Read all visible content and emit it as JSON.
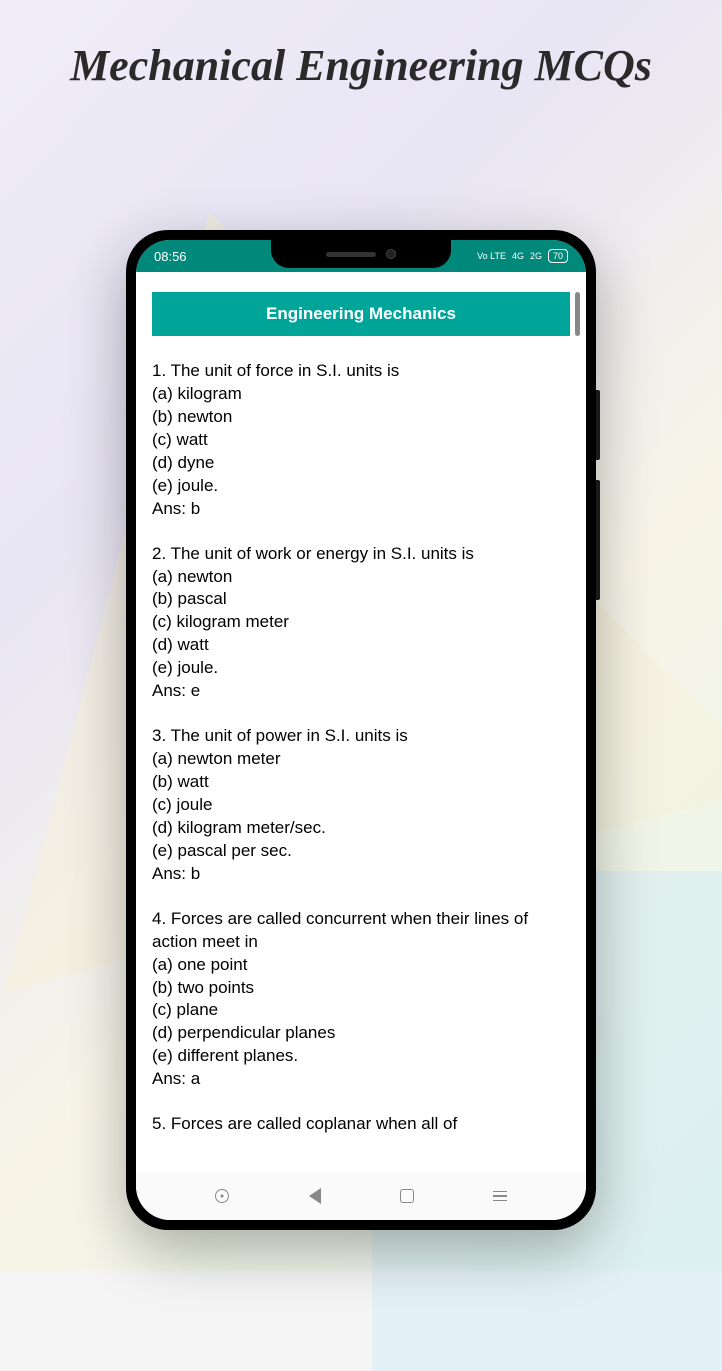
{
  "page": {
    "title": "Mechanical Engineering MCQs"
  },
  "status_bar": {
    "time": "08:56",
    "network1": "Vo LTE",
    "network2": "4G",
    "network3": "2G",
    "battery": "70"
  },
  "content": {
    "header": "Engineering Mechanics",
    "questions": [
      {
        "number": "1",
        "text": "The unit of force in S.I. units is",
        "options": [
          "(a) kilogram",
          "(b) newton",
          "(c) watt",
          "(d) dyne",
          "(e) joule."
        ],
        "answer": "Ans: b"
      },
      {
        "number": "2",
        "text": "The unit of work or energy in S.I. units is",
        "options": [
          "(a) newton",
          "(b) pascal",
          "(c) kilogram meter",
          "(d) watt",
          "(e) joule."
        ],
        "answer": "Ans: e"
      },
      {
        "number": "3",
        "text": "The unit of power in S.I. units is",
        "options": [
          "(a) newton meter",
          "(b) watt",
          "(c) joule",
          "(d) kilogram meter/sec.",
          "(e) pascal per sec."
        ],
        "answer": "Ans: b"
      },
      {
        "number": "4",
        "text": "Forces are called concurrent when their lines of action meet in",
        "options": [
          "(a) one point",
          "(b) two points",
          "(c) plane",
          "(d) perpendicular planes",
          "(e) different planes."
        ],
        "answer": "Ans: a"
      },
      {
        "number": "5",
        "text": "Forces are called coplanar when all of",
        "options": [],
        "answer": ""
      }
    ]
  },
  "colors": {
    "status_bg": "#00897b",
    "header_bg": "#00a59a",
    "text": "#000000"
  }
}
